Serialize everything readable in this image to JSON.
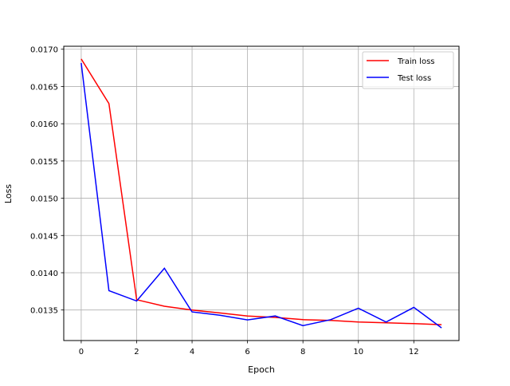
{
  "chart_data": {
    "type": "line",
    "title": "",
    "xlabel": "Epoch",
    "ylabel": "Loss",
    "xlim": [
      -0.63,
      13.63
    ],
    "ylim": [
      0.01309,
      0.01704
    ],
    "xticks": [
      0,
      2,
      4,
      6,
      8,
      10,
      12
    ],
    "yticks": [
      0.0135,
      0.014,
      0.0145,
      0.015,
      0.0155,
      0.016,
      0.0165,
      0.017
    ],
    "ytick_labels": [
      "0.0135",
      "0.0140",
      "0.0145",
      "0.0150",
      "0.0155",
      "0.0160",
      "0.0165",
      "0.0170"
    ],
    "grid": true,
    "legend_position": "top-right",
    "x": [
      0,
      1,
      2,
      3,
      4,
      5,
      6,
      7,
      8,
      9,
      10,
      11,
      12,
      13
    ],
    "series": [
      {
        "name": "Train loss",
        "color": "#ff0000",
        "values": [
          0.01687,
          0.01627,
          0.013638,
          0.01355,
          0.0135,
          0.01346,
          0.01342,
          0.0134,
          0.01337,
          0.01336,
          0.013338,
          0.013328,
          0.013317,
          0.013303
        ]
      },
      {
        "name": "Test loss",
        "color": "#0000ff",
        "values": [
          0.016815,
          0.01376,
          0.013621,
          0.01406,
          0.013474,
          0.01343,
          0.013367,
          0.01342,
          0.01329,
          0.01337,
          0.013525,
          0.013338,
          0.013535,
          0.01326
        ]
      }
    ]
  }
}
